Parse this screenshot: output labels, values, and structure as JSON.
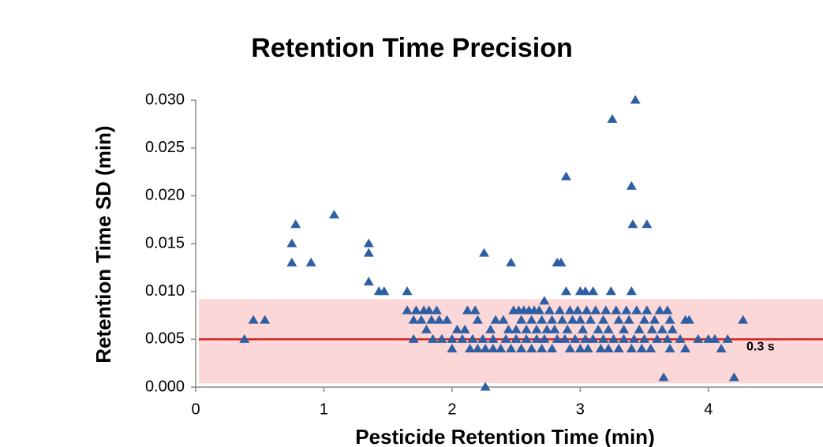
{
  "chart_data": {
    "type": "scatter",
    "title": "Retention Time Precision",
    "x_label": "Pesticide Retention Time (min)",
    "y_label": "Retention Time SD (min)",
    "color": "#2e5fa3",
    "marker": "triangle",
    "xlim": [
      0,
      4.9
    ],
    "xticks": [
      0,
      1,
      2,
      3,
      4
    ],
    "ylim": [
      0,
      0.03
    ],
    "yticks": [
      {
        "value": 0,
        "label": "0.000"
      },
      {
        "value": 0.005,
        "label": "0.005"
      },
      {
        "value": 0.01,
        "label": "0.010"
      },
      {
        "value": 0.015,
        "label": "0.015"
      },
      {
        "value": 0.02,
        "label": "0.020"
      },
      {
        "value": 0.025,
        "label": "0.025"
      },
      {
        "value": 0.03,
        "label": "0.030"
      }
    ],
    "band": {
      "from": 0.0004,
      "to": 0.0092,
      "color": "#fbd7d7"
    },
    "reference_line": {
      "value": 0.005,
      "color": "#d42020",
      "annotation": "0.3 s"
    },
    "x": [
      0.38,
      0.45,
      0.54,
      0.75,
      0.75,
      0.78,
      0.9,
      1.08,
      1.35,
      1.35,
      1.35,
      1.43,
      1.47,
      1.65,
      2.25,
      2.46,
      2.82,
      2.85,
      2.89,
      3.25,
      3.43,
      3.4,
      3.41,
      3.52,
      2.26,
      2.89,
      3.0,
      3.04,
      3.1,
      3.24,
      3.4,
      3.65,
      4.2,
      4.27,
      4.1,
      4.15,
      3.92,
      4.0,
      4.05,
      3.85,
      1.65,
      1.72,
      1.78,
      1.82,
      1.88,
      2.12,
      2.18,
      2.48,
      2.52,
      2.56,
      2.6,
      2.64,
      2.68,
      2.76,
      2.84,
      2.92,
      2.98,
      3.05,
      3.12,
      3.2,
      3.28,
      3.36,
      3.44,
      3.52,
      3.62,
      3.68,
      2.72,
      1.7,
      1.76,
      1.84,
      1.9,
      1.96,
      2.2,
      2.34,
      2.4,
      2.54,
      2.62,
      2.7,
      2.78,
      2.86,
      2.94,
      3.0,
      3.08,
      3.18,
      3.3,
      3.38,
      3.5,
      3.58,
      3.7,
      3.82,
      1.8,
      2.04,
      2.1,
      2.3,
      2.44,
      2.5,
      2.58,
      2.66,
      2.74,
      2.8,
      2.9,
      3.02,
      3.14,
      3.22,
      3.34,
      3.46,
      3.56,
      3.64,
      3.72,
      1.7,
      1.85,
      1.92,
      2.0,
      2.08,
      2.16,
      2.24,
      2.32,
      2.42,
      2.5,
      2.58,
      2.66,
      2.72,
      2.82,
      2.88,
      2.96,
      3.04,
      3.1,
      3.18,
      3.26,
      3.34,
      3.42,
      3.5,
      3.6,
      3.68,
      3.78,
      2.0,
      2.14,
      2.2,
      2.26,
      2.32,
      2.38,
      2.46,
      2.54,
      2.62,
      2.7,
      2.78,
      2.92,
      3.0,
      3.06,
      3.16,
      3.22,
      3.3,
      3.4,
      3.48,
      3.55,
      3.7,
      3.82
    ],
    "values": [
      0.005,
      0.007,
      0.007,
      0.015,
      0.013,
      0.017,
      0.013,
      0.018,
      0.015,
      0.014,
      0.011,
      0.01,
      0.01,
      0.01,
      0.014,
      0.013,
      0.013,
      0.013,
      0.022,
      0.028,
      0.03,
      0.021,
      0.017,
      0.017,
      0,
      0.01,
      0.01,
      0.01,
      0.01,
      0.01,
      0.01,
      0.001,
      0.001,
      0.007,
      0.004,
      0.005,
      0.005,
      0.005,
      0.005,
      0.007,
      0.008,
      0.008,
      0.008,
      0.008,
      0.008,
      0.008,
      0.008,
      0.008,
      0.008,
      0.008,
      0.008,
      0.008,
      0.008,
      0.008,
      0.008,
      0.008,
      0.008,
      0.008,
      0.008,
      0.008,
      0.008,
      0.008,
      0.008,
      0.008,
      0.008,
      0.008,
      0.009,
      0.007,
      0.007,
      0.007,
      0.007,
      0.007,
      0.007,
      0.007,
      0.007,
      0.007,
      0.007,
      0.007,
      0.007,
      0.007,
      0.007,
      0.007,
      0.007,
      0.007,
      0.007,
      0.007,
      0.007,
      0.007,
      0.007,
      0.007,
      0.006,
      0.006,
      0.006,
      0.006,
      0.006,
      0.006,
      0.006,
      0.006,
      0.006,
      0.006,
      0.006,
      0.006,
      0.006,
      0.006,
      0.006,
      0.006,
      0.006,
      0.006,
      0.006,
      0.005,
      0.005,
      0.005,
      0.005,
      0.005,
      0.005,
      0.005,
      0.005,
      0.005,
      0.005,
      0.005,
      0.005,
      0.005,
      0.005,
      0.005,
      0.005,
      0.005,
      0.005,
      0.005,
      0.005,
      0.005,
      0.005,
      0.005,
      0.005,
      0.005,
      0.005,
      0.004,
      0.004,
      0.004,
      0.004,
      0.004,
      0.004,
      0.004,
      0.004,
      0.004,
      0.004,
      0.004,
      0.004,
      0.004,
      0.004,
      0.004,
      0.004,
      0.004,
      0.004,
      0.004,
      0.004,
      0.004,
      0.004
    ]
  }
}
